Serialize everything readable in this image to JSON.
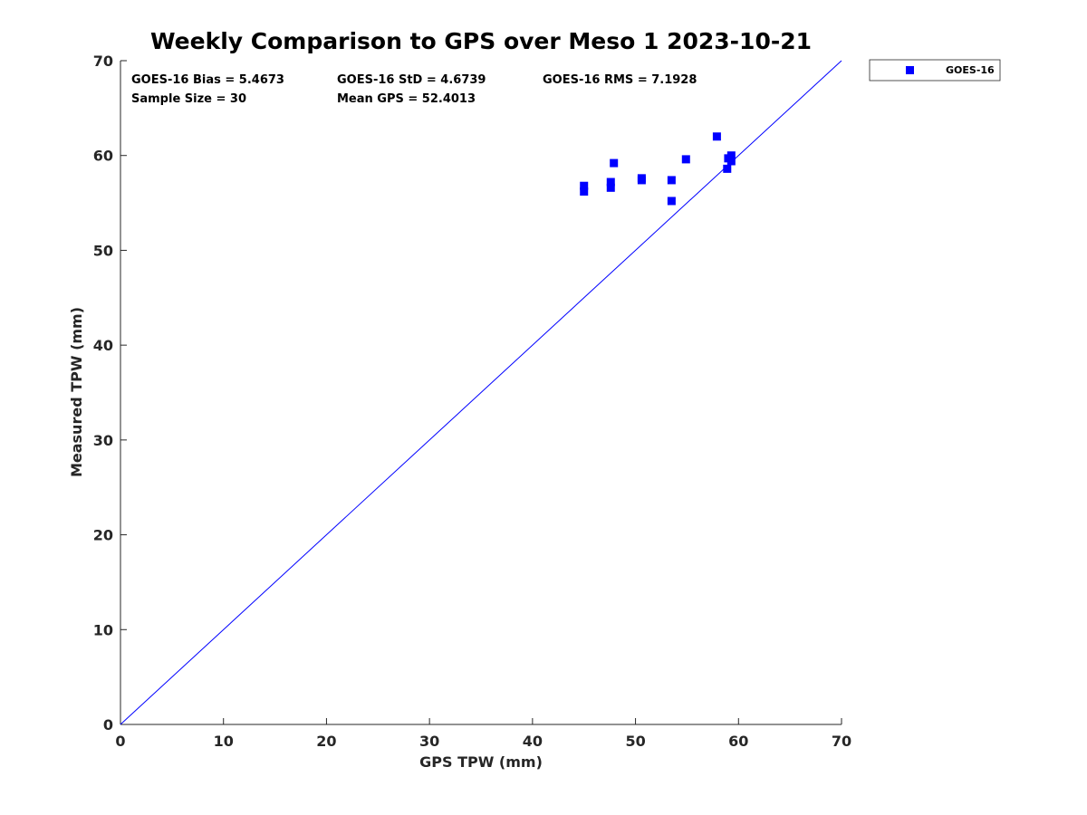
{
  "chart_data": {
    "type": "scatter",
    "title": "Weekly Comparison to GPS over Meso 1 2023-10-21",
    "xlabel": "GPS TPW (mm)",
    "ylabel": "Measured TPW (mm)",
    "xlim": [
      0,
      70
    ],
    "ylim": [
      0,
      70
    ],
    "xticks": [
      "0",
      "10",
      "20",
      "30",
      "40",
      "50",
      "60",
      "70"
    ],
    "yticks": [
      "0",
      "10",
      "20",
      "30",
      "40",
      "50",
      "60",
      "70"
    ],
    "grid": false,
    "legend_position": "outside-top-right",
    "reference_line": {
      "name": "1:1 line",
      "x": [
        0,
        70
      ],
      "y": [
        0,
        70
      ],
      "color": "#0000ff"
    },
    "series": [
      {
        "name": "GOES-16",
        "color": "#0000ff",
        "marker": "square",
        "points": [
          [
            45.0,
            56.2
          ],
          [
            45.0,
            56.8
          ],
          [
            47.6,
            56.6
          ],
          [
            47.6,
            57.2
          ],
          [
            47.9,
            59.2
          ],
          [
            50.6,
            57.4
          ],
          [
            50.6,
            57.6
          ],
          [
            53.5,
            55.2
          ],
          [
            53.5,
            57.4
          ],
          [
            54.9,
            59.6
          ],
          [
            57.9,
            62.0
          ],
          [
            58.9,
            58.6
          ],
          [
            59.0,
            59.7
          ],
          [
            59.3,
            59.4
          ],
          [
            59.3,
            60.0
          ]
        ]
      }
    ],
    "stats": [
      {
        "text": "GOES-16 Bias = 5.4673",
        "row": 1,
        "col": 1
      },
      {
        "text": "GOES-16 StD = 4.6739",
        "row": 1,
        "col": 2
      },
      {
        "text": "GOES-16 RMS = 7.1928",
        "row": 1,
        "col": 3
      },
      {
        "text": "Sample Size = 30",
        "row": 2,
        "col": 1
      },
      {
        "text": "Mean GPS = 52.4013",
        "row": 2,
        "col": 2
      }
    ]
  }
}
